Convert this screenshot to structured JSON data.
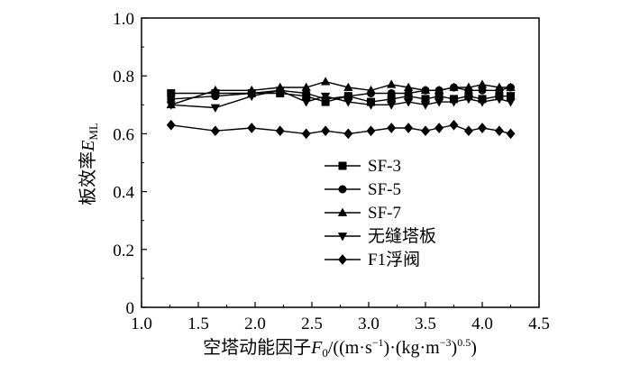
{
  "chart_data": {
    "type": "line",
    "xlabel": {
      "prefix": "空塔动能因子",
      "var": "F",
      "var_sub": "0",
      "unit_open": "/((m·s",
      "sup1": "−1",
      "unit_mid": ")·(kg·m",
      "sup2": "−3",
      "unit_close": ")",
      "sup3": "0.5",
      "unit_end": ")"
    },
    "ylabel": {
      "prefix": "板效率",
      "var": "E",
      "var_sub": "ML"
    },
    "xlim": [
      1.0,
      4.5
    ],
    "ylim": [
      0,
      1.0
    ],
    "xticks": [
      "1.0",
      "1.5",
      "2.0",
      "2.5",
      "3.0",
      "3.5",
      "4.0",
      "4.5"
    ],
    "yticks": [
      "0",
      "0.2",
      "0.4",
      "0.6",
      "0.8",
      "1.0"
    ],
    "legend_position": "center-right",
    "series": [
      {
        "name": "SF-3",
        "marker": "square",
        "x": [
          1.26,
          1.65,
          1.97,
          2.22,
          2.45,
          2.62,
          2.82,
          3.02,
          3.2,
          3.35,
          3.5,
          3.62,
          3.75,
          3.88,
          4.0,
          4.15,
          4.25
        ],
        "y": [
          0.74,
          0.74,
          0.74,
          0.74,
          0.73,
          0.71,
          0.73,
          0.71,
          0.72,
          0.73,
          0.72,
          0.73,
          0.72,
          0.73,
          0.72,
          0.73,
          0.73
        ]
      },
      {
        "name": "SF-5",
        "marker": "circle",
        "x": [
          1.26,
          1.65,
          1.97,
          2.22,
          2.45,
          2.62,
          2.82,
          3.02,
          3.2,
          3.35,
          3.5,
          3.62,
          3.75,
          3.88,
          4.0,
          4.15,
          4.25
        ],
        "y": [
          0.72,
          0.73,
          0.74,
          0.75,
          0.74,
          0.72,
          0.73,
          0.74,
          0.74,
          0.74,
          0.75,
          0.75,
          0.76,
          0.75,
          0.75,
          0.75,
          0.76
        ]
      },
      {
        "name": "SF-7",
        "marker": "triangle-up",
        "x": [
          1.26,
          1.65,
          1.97,
          2.22,
          2.45,
          2.62,
          2.82,
          3.02,
          3.2,
          3.35,
          3.5,
          3.62,
          3.75,
          3.88,
          4.0,
          4.15,
          4.25
        ],
        "y": [
          0.7,
          0.75,
          0.75,
          0.76,
          0.76,
          0.78,
          0.76,
          0.75,
          0.77,
          0.76,
          0.75,
          0.75,
          0.76,
          0.76,
          0.77,
          0.76,
          0.76
        ]
      },
      {
        "name": "无缝塔板",
        "marker": "triangle-down",
        "x": [
          1.26,
          1.65,
          1.97,
          2.22,
          2.45,
          2.62,
          2.82,
          3.02,
          3.2,
          3.35,
          3.5,
          3.62,
          3.75,
          3.88,
          4.0,
          4.15,
          4.25
        ],
        "y": [
          0.7,
          0.69,
          0.73,
          0.75,
          0.71,
          0.73,
          0.71,
          0.7,
          0.7,
          0.71,
          0.7,
          0.71,
          0.71,
          0.72,
          0.71,
          0.72,
          0.71
        ]
      },
      {
        "name": "F1浮阀",
        "marker": "diamond",
        "x": [
          1.26,
          1.65,
          1.97,
          2.22,
          2.45,
          2.62,
          2.82,
          3.02,
          3.2,
          3.35,
          3.5,
          3.62,
          3.75,
          3.88,
          4.0,
          4.15,
          4.25
        ],
        "y": [
          0.63,
          0.61,
          0.62,
          0.61,
          0.6,
          0.61,
          0.6,
          0.61,
          0.62,
          0.62,
          0.61,
          0.62,
          0.63,
          0.61,
          0.62,
          0.61,
          0.6
        ]
      }
    ],
    "colors": {
      "line": "#000000",
      "marker": "#000000",
      "axis": "#000000"
    }
  }
}
